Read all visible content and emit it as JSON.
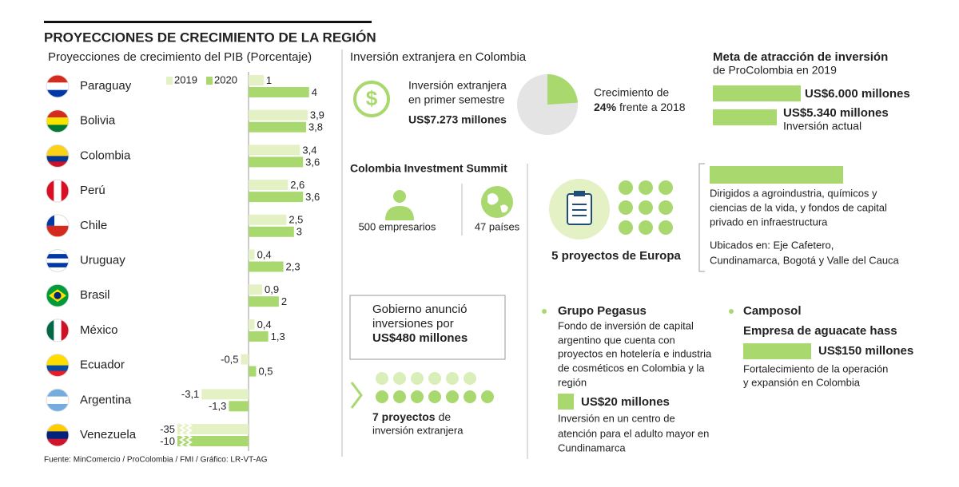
{
  "chart_data": {
    "type": "bar",
    "orientation": "horizontal",
    "title": "PROYECCIONES DE CRECIMIENTO DE LA REGIÓN",
    "subtitle": "Proyecciones de crecimiento del PIB (Porcentaje)",
    "categories": [
      "Paraguay",
      "Bolivia",
      "Colombia",
      "Perú",
      "Chile",
      "Uruguay",
      "Brasil",
      "México",
      "Ecuador",
      "Argentina",
      "Venezuela"
    ],
    "series": [
      {
        "name": "2019",
        "color": "#e3f1c4",
        "values": [
          1,
          3.9,
          3.4,
          2.6,
          2.5,
          0.4,
          0.9,
          0.4,
          -0.5,
          -3.1,
          -35
        ],
        "value_labels": [
          "1",
          "3,9",
          "3,4",
          "2,6",
          "2,5",
          "0,4",
          "0,9",
          "0,4",
          "-0,5",
          "-3,1",
          "-35"
        ]
      },
      {
        "name": "2020",
        "color": "#a8d86e",
        "values": [
          4,
          3.8,
          3.6,
          3.6,
          3,
          2.3,
          2,
          1.3,
          0.5,
          -1.3,
          -10
        ],
        "value_labels": [
          "4",
          "3,8",
          "3,6",
          "3,6",
          "3",
          "2,3",
          "2",
          "1,3",
          "0,5",
          "-1,3",
          "-10"
        ]
      }
    ],
    "xlim": [
      -4.7,
      4.7
    ],
    "source": "Fuente: MinComercio / ProColombia / FMI / Gráfico: LR-VT-AG"
  },
  "foreign_investment": {
    "title": "Inversión extranjera en Colombia",
    "lines": [
      "Inversión extranjera",
      "en primer semestre"
    ],
    "amount": "US$7.273 millones",
    "growth": {
      "value": 24,
      "value_label": "24%",
      "before": "Crecimiento de",
      "after": "frente a 2018"
    }
  },
  "target": {
    "title": "Meta de atracción de inversión",
    "subtitle": "de ProColombia en 2019",
    "goal": "US$6.000 millones",
    "current": "US$5.340 millones",
    "current_note": "Inversión actual"
  },
  "summit": {
    "title": "Colombia Investment Summit",
    "items": [
      "500 empresarios",
      "47 países"
    ]
  },
  "europe": {
    "label": "5 proyectos de Europa",
    "description": [
      "Dirigidos a agroindustria, químicos y",
      "ciencias de la vida, y fondos de capital",
      "privado en infraestructura"
    ],
    "locations": [
      "Ubicados en: Eje Cafetero,",
      "Cundinamarca, Bogotá y Valle del Cauca"
    ]
  },
  "government": {
    "lines": [
      "Gobierno anunció",
      "inversiones por",
      "US$480 millones"
    ]
  },
  "projects": {
    "strong": "7 proyectos",
    "text": "de",
    "line2": "inversión extranjera"
  },
  "pegasus": {
    "title": "Grupo Pegasus",
    "description": [
      "Fondo de inversión de capital",
      "argentino que cuenta con",
      "proyectos en hotelería e industria",
      "de cosméticos en Colombia y la",
      "región"
    ],
    "amount": "US$20 millones",
    "detail": [
      "Inversión en un centro de",
      "atención para el adulto mayor en",
      "Cundinamarca"
    ]
  },
  "camposol": {
    "title": "Camposol",
    "subtitle": "Empresa de aguacate hass",
    "amount": "US$150 millones",
    "detail": [
      "Fortalecimiento de la operación",
      "y expansión en Colombia"
    ]
  }
}
